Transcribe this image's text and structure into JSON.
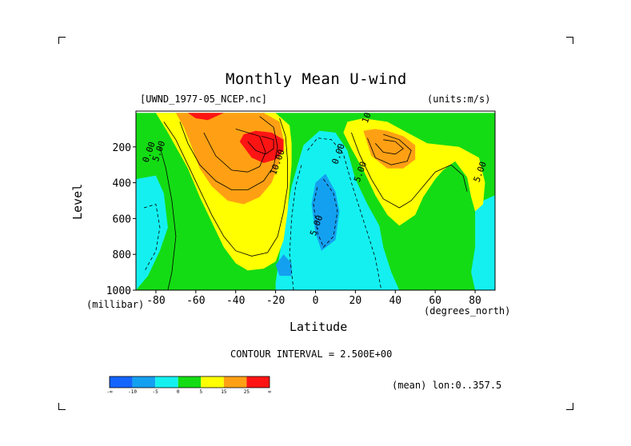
{
  "chart_data": {
    "type": "heatmap",
    "title": "Monthly Mean U-wind",
    "dataset_label": "[UWND_1977-05_NCEP.nc]",
    "units_label": "(units:m/s)",
    "xlabel": "Latitude",
    "ylabel": "Level",
    "x_units": "(degrees_north)",
    "y_units": "(millibar)",
    "xlim": [
      -90,
      90
    ],
    "ylim": [
      1000,
      0
    ],
    "x_ticks": [
      -80,
      -60,
      -40,
      -20,
      0,
      20,
      40,
      60,
      80
    ],
    "x_tick_labels": [
      "-80",
      "-60",
      "-40",
      "-20",
      "0",
      "20",
      "40",
      "60",
      "80"
    ],
    "y_ticks": [
      200,
      400,
      600,
      800,
      1000
    ],
    "y_tick_labels": [
      "200",
      "400",
      "600",
      "800",
      "1000"
    ],
    "contour_interval_text": "CONTOUR INTERVAL = 2.500E+00",
    "footer_text": "(mean) lon:0..357.5",
    "colorbar": {
      "colors": [
        "#1464ff",
        "#14a0f0",
        "#14f0f0",
        "#14dc14",
        "#ffff00",
        "#ffa014",
        "#ff1414"
      ],
      "labels": [
        "-∞",
        "-10",
        "-5",
        "0",
        "5",
        "15",
        "25",
        "∞"
      ]
    },
    "contour_labels": [
      {
        "text": "0.00",
        "lat": -84,
        "level": 290
      },
      {
        "text": "5.00",
        "lat": -79,
        "level": 285
      },
      {
        "text": "10.00",
        "lat": -20,
        "level": 360
      },
      {
        "text": "0.00",
        "lat": 11,
        "level": 300
      },
      {
        "text": "5.00",
        "lat": 22,
        "level": 400
      },
      {
        "text": "10.00",
        "lat": 26,
        "level": 70
      },
      {
        "text": "5.00",
        "lat": 0,
        "level": 700
      },
      {
        "text": "5.00",
        "lat": 82,
        "level": 400
      }
    ],
    "fields": [
      {
        "name": "blue",
        "color": "#14a0f0",
        "polys": [
          [
            [
              5,
              350
            ],
            [
              10,
              450
            ],
            [
              12,
              560
            ],
            [
              10,
              720
            ],
            [
              3,
              780
            ],
            [
              0,
              680
            ],
            [
              -2,
              520
            ],
            [
              0,
              400
            ]
          ],
          [
            [
              -16,
              800
            ],
            [
              -12,
              850
            ],
            [
              -12,
              920
            ],
            [
              -18,
              920
            ],
            [
              -20,
              860
            ]
          ]
        ]
      },
      {
        "name": "cyan",
        "color": "#14f0f0",
        "polys": [
          [
            [
              -90,
              380
            ],
            [
              -80,
              360
            ],
            [
              -76,
              460
            ],
            [
              -74,
              650
            ],
            [
              -78,
              780
            ],
            [
              -84,
              920
            ],
            [
              -90,
              1000
            ]
          ],
          [
            [
              -6,
              190
            ],
            [
              2,
              110
            ],
            [
              10,
              120
            ],
            [
              16,
              220
            ],
            [
              20,
              380
            ],
            [
              26,
              520
            ],
            [
              32,
              640
            ],
            [
              34,
              760
            ],
            [
              38,
              900
            ],
            [
              42,
              1000
            ],
            [
              -20,
              1000
            ],
            [
              -20,
              960
            ],
            [
              -18,
              800
            ],
            [
              -15,
              600
            ],
            [
              -12,
              420
            ],
            [
              -9,
              300
            ]
          ],
          [
            [
              80,
              560
            ],
            [
              84,
              500
            ],
            [
              90,
              470
            ],
            [
              90,
              1000
            ],
            [
              80,
              1000
            ],
            [
              78,
              900
            ],
            [
              80,
              760
            ]
          ]
        ]
      },
      {
        "name": "green",
        "color": "#14dc14",
        "polys": [
          [
            [
              -90,
              10
            ],
            [
              90,
              10
            ],
            [
              90,
              1000
            ],
            [
              -90,
              1000
            ]
          ]
        ]
      },
      {
        "name": "yellow",
        "color": "#ffff00",
        "polys": [
          [
            [
              -80,
              10
            ],
            [
              -74,
              120
            ],
            [
              -70,
              200
            ],
            [
              -64,
              320
            ],
            [
              -58,
              480
            ],
            [
              -52,
              620
            ],
            [
              -46,
              760
            ],
            [
              -40,
              850
            ],
            [
              -34,
              890
            ],
            [
              -26,
              880
            ],
            [
              -20,
              840
            ],
            [
              -16,
              720
            ],
            [
              -14,
              560
            ],
            [
              -13,
              420
            ],
            [
              -12,
              300
            ],
            [
              -12,
              180
            ],
            [
              -13,
              80
            ],
            [
              -20,
              10
            ]
          ],
          [
            [
              14,
              120
            ],
            [
              18,
              210
            ],
            [
              24,
              330
            ],
            [
              30,
              470
            ],
            [
              36,
              580
            ],
            [
              42,
              640
            ],
            [
              50,
              580
            ],
            [
              54,
              480
            ],
            [
              60,
              380
            ],
            [
              64,
              330
            ],
            [
              70,
              280
            ],
            [
              76,
              370
            ],
            [
              78,
              480
            ],
            [
              80,
              560
            ],
            [
              84,
              520
            ],
            [
              85,
              400
            ],
            [
              82,
              260
            ],
            [
              72,
              200
            ],
            [
              56,
              180
            ],
            [
              46,
              120
            ],
            [
              36,
              60
            ],
            [
              24,
              40
            ],
            [
              16,
              60
            ]
          ]
        ]
      },
      {
        "name": "orange",
        "color": "#ffa014",
        "polys": [
          [
            [
              -70,
              10
            ],
            [
              -66,
              90
            ],
            [
              -62,
              200
            ],
            [
              -58,
              320
            ],
            [
              -52,
              420
            ],
            [
              -44,
              500
            ],
            [
              -36,
              520
            ],
            [
              -28,
              480
            ],
            [
              -22,
              400
            ],
            [
              -18,
              280
            ],
            [
              -16,
              160
            ],
            [
              -18,
              60
            ],
            [
              -26,
              10
            ]
          ],
          [
            [
              24,
              110
            ],
            [
              28,
              250
            ],
            [
              36,
              320
            ],
            [
              44,
              320
            ],
            [
              50,
              270
            ],
            [
              50,
              190
            ],
            [
              44,
              140
            ],
            [
              36,
              110
            ],
            [
              30,
              100
            ]
          ]
        ]
      },
      {
        "name": "red",
        "color": "#ff1414",
        "polys": [
          [
            [
              -64,
              10
            ],
            [
              -60,
              40
            ],
            [
              -54,
              50
            ],
            [
              -46,
              10
            ]
          ],
          [
            [
              -36,
              200
            ],
            [
              -32,
              260
            ],
            [
              -26,
              290
            ],
            [
              -20,
              270
            ],
            [
              -16,
              220
            ],
            [
              -16,
              160
            ],
            [
              -22,
              120
            ],
            [
              -30,
              110
            ],
            [
              -36,
              130
            ],
            [
              -38,
              170
            ]
          ]
        ]
      }
    ],
    "contours": [
      {
        "value": -5,
        "dashed": true,
        "points": [
          [
            4,
            380
          ],
          [
            9,
            460
          ],
          [
            11,
            560
          ],
          [
            9,
            700
          ],
          [
            4,
            760
          ],
          [
            1,
            680
          ],
          [
            -1,
            520
          ],
          [
            1,
            420
          ]
        ]
      },
      {
        "value": -5,
        "dashed": true,
        "points": [
          [
            -86,
            540
          ],
          [
            -80,
            520
          ],
          [
            -78,
            650
          ],
          [
            -80,
            780
          ],
          [
            -86,
            900
          ]
        ]
      },
      {
        "value": 0,
        "dashed": true,
        "points": [
          [
            -4,
            220
          ],
          [
            1,
            150
          ],
          [
            8,
            160
          ],
          [
            14,
            240
          ],
          [
            18,
            400
          ],
          [
            22,
            540
          ],
          [
            26,
            680
          ],
          [
            30,
            820
          ],
          [
            33,
            1000
          ]
        ]
      },
      {
        "value": 0,
        "dashed": true,
        "points": [
          [
            -11,
            1000
          ],
          [
            -13,
            800
          ],
          [
            -12,
            600
          ],
          [
            -10,
            420
          ],
          [
            -7,
            300
          ]
        ]
      },
      {
        "value": 2.5,
        "dashed": false,
        "points": [
          [
            -78,
            200
          ],
          [
            -75,
            320
          ],
          [
            -72,
            500
          ],
          [
            -70,
            700
          ],
          [
            -72,
            900
          ],
          [
            -74,
            1000
          ]
        ]
      },
      {
        "value": 7.5,
        "dashed": false,
        "points": [
          [
            -76,
            60
          ],
          [
            -70,
            160
          ],
          [
            -64,
            300
          ],
          [
            -58,
            440
          ],
          [
            -52,
            580
          ],
          [
            -46,
            700
          ],
          [
            -40,
            780
          ],
          [
            -32,
            810
          ],
          [
            -24,
            790
          ],
          [
            -19,
            700
          ],
          [
            -16,
            560
          ],
          [
            -14,
            420
          ],
          [
            -14,
            280
          ],
          [
            -15,
            140
          ],
          [
            -18,
            40
          ]
        ]
      },
      {
        "value": 12.5,
        "dashed": false,
        "points": [
          [
            -68,
            60
          ],
          [
            -64,
            180
          ],
          [
            -58,
            300
          ],
          [
            -50,
            390
          ],
          [
            -42,
            440
          ],
          [
            -34,
            440
          ],
          [
            -26,
            390
          ],
          [
            -21,
            310
          ],
          [
            -19,
            200
          ],
          [
            -21,
            90
          ],
          [
            -28,
            30
          ]
        ]
      },
      {
        "value": 17.5,
        "dashed": false,
        "points": [
          [
            -56,
            120
          ],
          [
            -50,
            250
          ],
          [
            -42,
            330
          ],
          [
            -34,
            340
          ],
          [
            -28,
            310
          ],
          [
            -25,
            230
          ],
          [
            -28,
            140
          ],
          [
            -40,
            100
          ]
        ]
      },
      {
        "value": 27.5,
        "dashed": false,
        "points": [
          [
            -34,
            170
          ],
          [
            -30,
            220
          ],
          [
            -25,
            240
          ],
          [
            -21,
            210
          ],
          [
            -21,
            160
          ],
          [
            -27,
            140
          ]
        ]
      },
      {
        "value": 7.5,
        "dashed": false,
        "points": [
          [
            18,
            120
          ],
          [
            22,
            240
          ],
          [
            28,
            380
          ],
          [
            34,
            490
          ],
          [
            42,
            540
          ],
          [
            48,
            500
          ],
          [
            54,
            420
          ],
          [
            60,
            340
          ],
          [
            68,
            300
          ],
          [
            74,
            360
          ],
          [
            76,
            450
          ]
        ]
      },
      {
        "value": 12.5,
        "dashed": false,
        "points": [
          [
            26,
            150
          ],
          [
            30,
            260
          ],
          [
            38,
            300
          ],
          [
            46,
            280
          ],
          [
            48,
            220
          ],
          [
            42,
            160
          ],
          [
            34,
            130
          ]
        ]
      },
      {
        "value": 17.5,
        "dashed": false,
        "points": [
          [
            30,
            180
          ],
          [
            34,
            230
          ],
          [
            40,
            240
          ],
          [
            44,
            210
          ],
          [
            40,
            170
          ],
          [
            34,
            160
          ]
        ]
      }
    ]
  }
}
